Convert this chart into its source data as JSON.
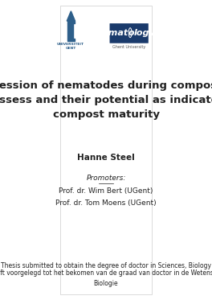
{
  "background_color": "#ffffff",
  "border_color": "#cccccc",
  "title_text": "Succession of nematodes during composting\nprocessess and their potential as indicators of\ncompost maturity",
  "title_fontsize": 9.5,
  "title_color": "#222222",
  "author_name": "Hanne Steel",
  "author_fontsize": 7.5,
  "promoters_label": "Promoters:",
  "promoters_fontsize": 6.5,
  "promoter1": "Prof. dr. Wim Bert (UGent)",
  "promoter2": "Prof. dr. Tom Moens (UGent)",
  "footer1": "Thesis submitted to obtain the degree of doctor in Sciences, Biology",
  "footer2": "Proefschrift voorgelegd tot het bekomen van de graad van doctor in de Wetenschappen,\nBiologie",
  "footer_fontsize": 5.5,
  "logo_left_color": "#2e5f8a",
  "logo_right_bg": "#1a3a6b",
  "text_color_gray": "#555555"
}
